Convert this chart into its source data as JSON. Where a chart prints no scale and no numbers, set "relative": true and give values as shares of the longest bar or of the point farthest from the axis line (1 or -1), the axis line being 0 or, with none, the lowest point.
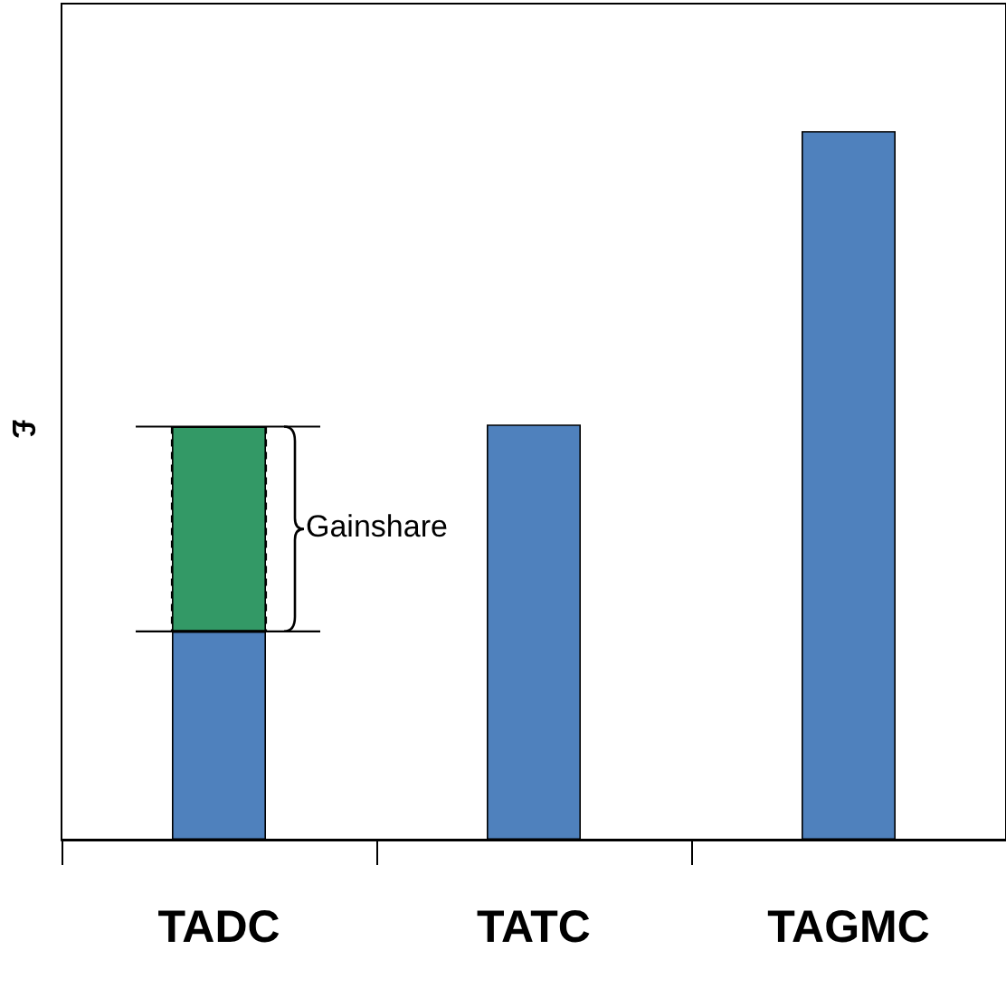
{
  "chart_data": {
    "type": "bar",
    "relative": true,
    "stacked": true,
    "ylabel": "£",
    "categories": [
      "TADC",
      "TATC",
      "TAGMC"
    ],
    "series": [
      {
        "color": "#4f81bd",
        "values": [
          0.294,
          0.586,
          1
        ]
      },
      {
        "color": "#339966",
        "values": [
          0.289,
          null,
          null
        ]
      }
    ],
    "annotations": [
      "Gainshare"
    ]
  }
}
